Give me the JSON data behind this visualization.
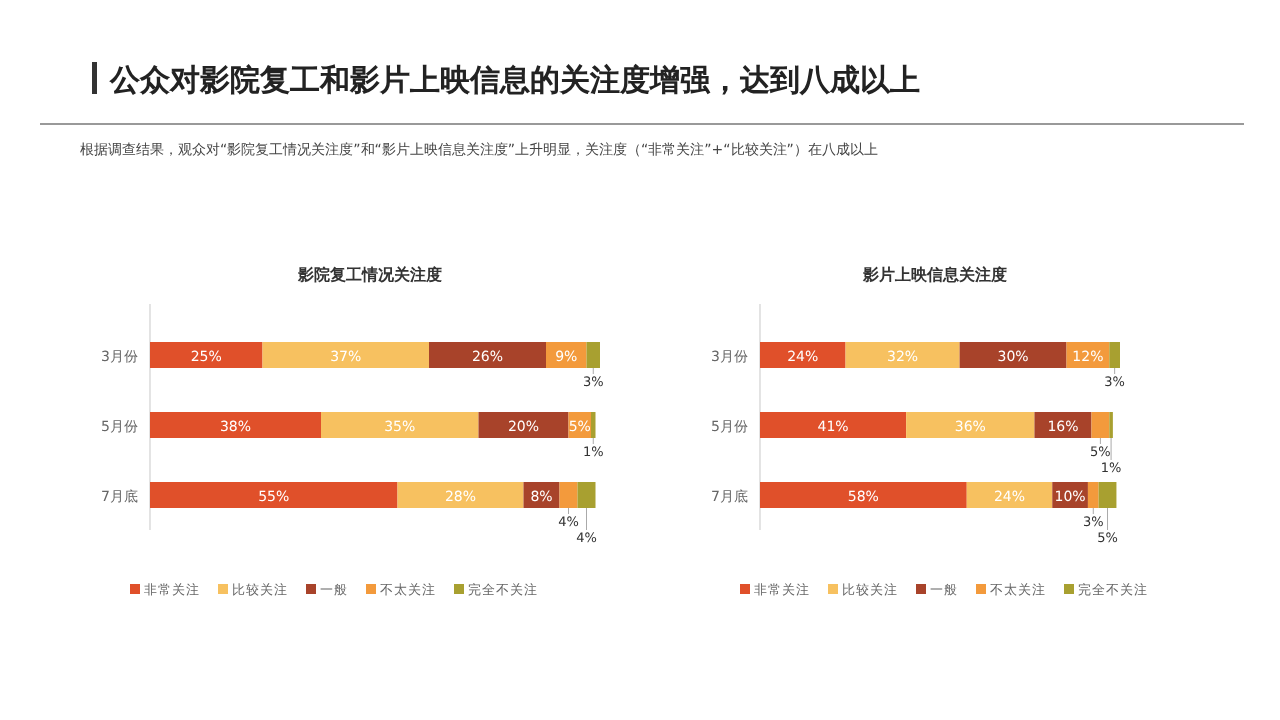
{
  "chart_data": [
    {
      "type": "bar",
      "orientation": "horizontal",
      "stacked": true,
      "legend": "bottom",
      "title": "影院复工情况关注度",
      "annotations": [
        "公众对影院复工和影片上映信息的关注度增强，达到八成以上",
        "根据调查结果，观众对“影院复工情况关注度”和“影片上映信息关注度”上升明显，关注度（“非常关注”+“比较关注”）在八成以上"
      ],
      "categories": [
        "3月份",
        "5月份",
        "7月底"
      ],
      "series": [
        {
          "name": "非常关注",
          "color": "#e0502a",
          "values": [
            25,
            38,
            55
          ],
          "value_labels": [
            "25%",
            "38%",
            "55%"
          ]
        },
        {
          "name": "比较关注",
          "color": "#f7c160",
          "values": [
            37,
            35,
            28
          ],
          "value_labels": [
            "37%",
            "35%",
            "28%"
          ]
        },
        {
          "name": "一般",
          "color": "#a8432a",
          "values": [
            26,
            20,
            8
          ],
          "value_labels": [
            "26%",
            "20%",
            "8%"
          ]
        },
        {
          "name": "不太关注",
          "color": "#f39a3c",
          "values": [
            9,
            5,
            4
          ],
          "value_labels": [
            "9%",
            "5%",
            "4%"
          ]
        },
        {
          "name": "完全不关注",
          "color": "#a8a030",
          "values": [
            3,
            1,
            4
          ],
          "value_labels": [
            "3%",
            "1%",
            "4%"
          ]
        }
      ]
    },
    {
      "type": "bar",
      "orientation": "horizontal",
      "stacked": true,
      "legend": "bottom",
      "title": "影片上映信息关注度",
      "categories": [
        "3月份",
        "5月份",
        "7月底"
      ],
      "series": [
        {
          "name": "非常关注",
          "color": "#e0502a",
          "values": [
            24,
            41,
            58
          ],
          "value_labels": [
            "24%",
            "41%",
            "58%"
          ]
        },
        {
          "name": "比较关注",
          "color": "#f7c160",
          "values": [
            32,
            36,
            24
          ],
          "value_labels": [
            "32%",
            "36%",
            "24%"
          ]
        },
        {
          "name": "一般",
          "color": "#a8432a",
          "values": [
            30,
            16,
            10
          ],
          "value_labels": [
            "30%",
            "16%",
            "10%"
          ]
        },
        {
          "name": "不太关注",
          "color": "#f39a3c",
          "values": [
            12,
            5,
            3
          ],
          "value_labels": [
            "12%",
            "5%",
            "3%"
          ]
        },
        {
          "name": "完全不关注",
          "color": "#a8a030",
          "values": [
            3,
            1,
            5
          ],
          "value_labels": [
            "3%",
            "1%",
            "5%"
          ]
        }
      ]
    }
  ]
}
